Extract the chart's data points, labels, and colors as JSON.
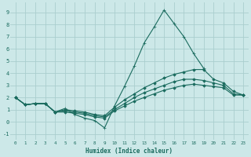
{
  "xlabel": "Humidex (Indice chaleur)",
  "bg_color": "#cce8e8",
  "grid_color": "#aacece",
  "line_color": "#1a6b5e",
  "xlim": [
    -0.5,
    23.5
  ],
  "ylim": [
    -1.5,
    9.8
  ],
  "xticks": [
    0,
    1,
    2,
    3,
    4,
    5,
    6,
    7,
    8,
    9,
    10,
    11,
    12,
    13,
    14,
    15,
    16,
    17,
    18,
    19,
    20,
    21,
    22,
    23
  ],
  "yticks": [
    -1,
    0,
    1,
    2,
    3,
    4,
    5,
    6,
    7,
    8,
    9
  ],
  "lines": [
    {
      "x": [
        0,
        1,
        2,
        3,
        4,
        5,
        6,
        7,
        8,
        9,
        10,
        11,
        12,
        13,
        14,
        15,
        16,
        17,
        18,
        19
      ],
      "y": [
        2.0,
        1.4,
        1.5,
        1.5,
        0.8,
        1.1,
        0.6,
        0.3,
        0.1,
        -0.5,
        1.3,
        2.9,
        4.6,
        6.5,
        7.8,
        9.2,
        8.1,
        7.0,
        5.6,
        4.4
      ],
      "marker": "+",
      "ms": 3.0,
      "lw": 0.8
    },
    {
      "x": [
        0,
        1,
        2,
        3,
        4,
        5,
        6,
        7,
        8,
        9,
        10,
        11,
        12,
        13,
        14,
        15,
        16,
        17,
        18,
        19,
        20,
        21,
        22,
        23
      ],
      "y": [
        2.0,
        1.4,
        1.5,
        1.5,
        0.8,
        1.0,
        0.9,
        0.8,
        0.6,
        0.5,
        1.2,
        1.8,
        2.3,
        2.8,
        3.2,
        3.6,
        3.9,
        4.1,
        4.3,
        4.3,
        3.5,
        3.2,
        2.5,
        2.2
      ],
      "marker": "D",
      "ms": 1.8,
      "lw": 0.8
    },
    {
      "x": [
        0,
        1,
        2,
        3,
        4,
        5,
        6,
        7,
        8,
        9,
        10,
        11,
        12,
        13,
        14,
        15,
        16,
        17,
        18,
        19,
        20,
        21,
        22,
        23
      ],
      "y": [
        2.0,
        1.4,
        1.5,
        1.5,
        0.8,
        0.9,
        0.8,
        0.7,
        0.5,
        0.4,
        1.0,
        1.5,
        2.0,
        2.4,
        2.7,
        3.0,
        3.3,
        3.5,
        3.5,
        3.4,
        3.2,
        3.0,
        2.3,
        2.2
      ],
      "marker": "D",
      "ms": 1.8,
      "lw": 0.8
    },
    {
      "x": [
        0,
        1,
        2,
        3,
        4,
        5,
        6,
        7,
        8,
        9,
        10,
        11,
        12,
        13,
        14,
        15,
        16,
        17,
        18,
        19,
        20,
        21,
        22,
        23
      ],
      "y": [
        2.0,
        1.4,
        1.5,
        1.5,
        0.8,
        0.8,
        0.7,
        0.6,
        0.4,
        0.3,
        0.9,
        1.3,
        1.7,
        2.0,
        2.3,
        2.6,
        2.8,
        3.0,
        3.1,
        3.0,
        2.9,
        2.8,
        2.2,
        2.2
      ],
      "marker": "D",
      "ms": 1.8,
      "lw": 0.8
    }
  ]
}
